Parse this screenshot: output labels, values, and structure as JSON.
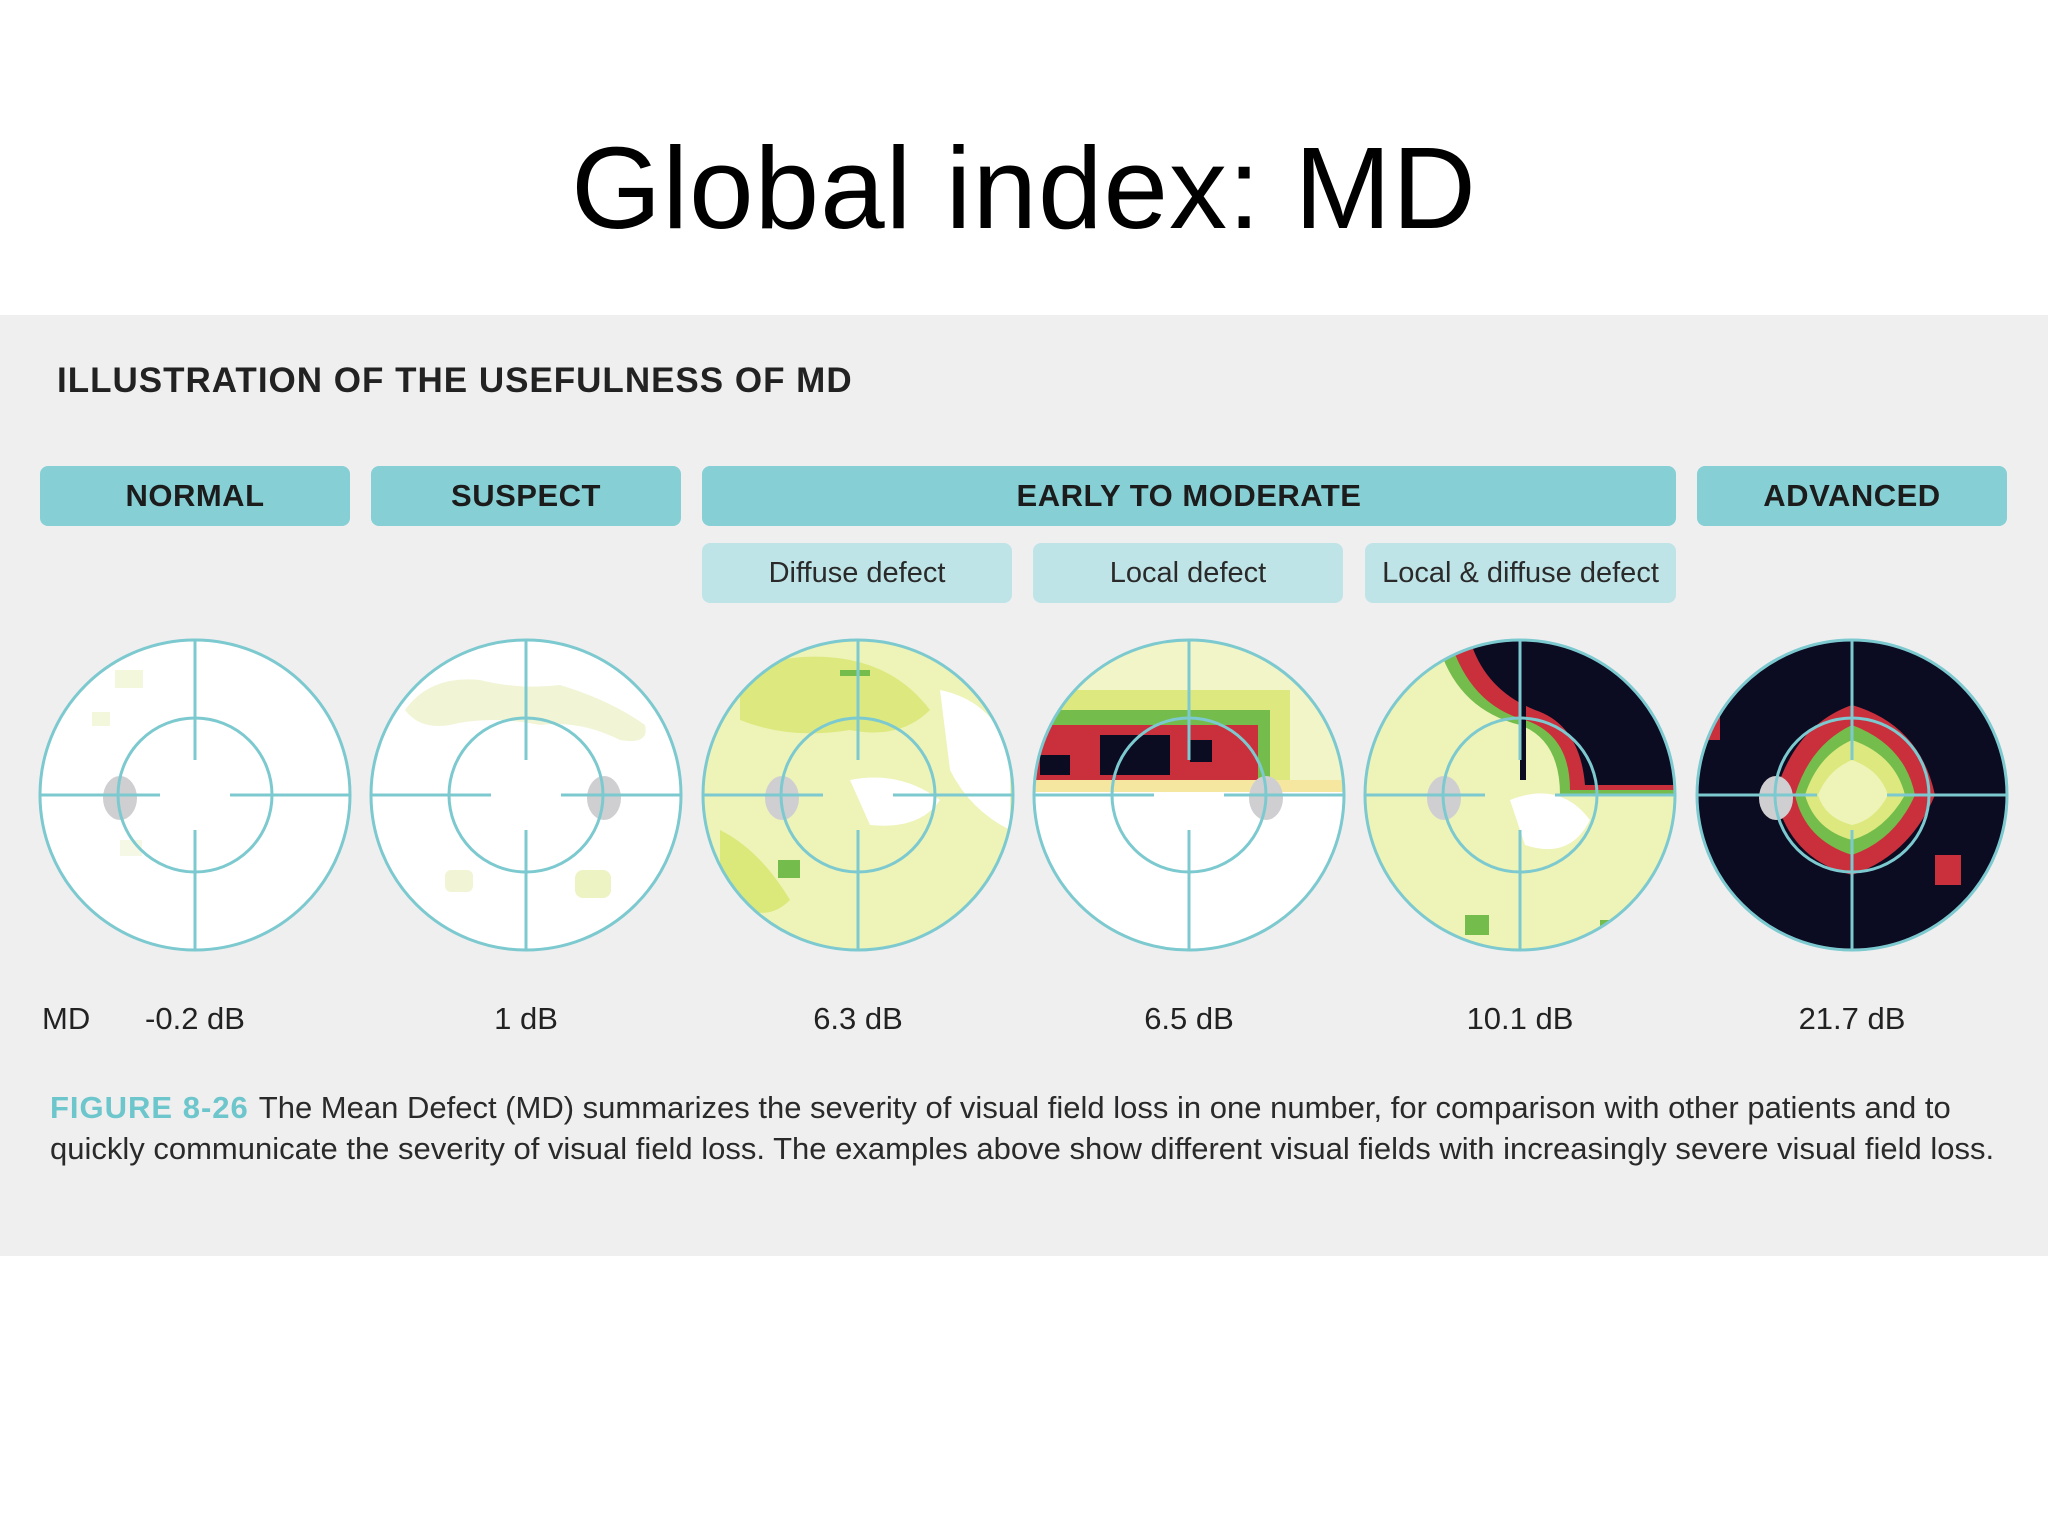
{
  "slide": {
    "title": "Global index: MD"
  },
  "figure": {
    "heading": "ILLUSTRATION OF THE USEFULNESS OF MD",
    "categories": [
      {
        "label": "NORMAL"
      },
      {
        "label": "SUSPECT"
      },
      {
        "label": "EARLY TO MODERATE"
      },
      {
        "label": "ADVANCED"
      }
    ],
    "subcategories": [
      {
        "label": "Diffuse defect"
      },
      {
        "label": "Local defect"
      },
      {
        "label": "Local & diffuse defect"
      }
    ],
    "md_row_label": "MD",
    "fields": [
      {
        "md": "-0.2 dB",
        "defect": "none"
      },
      {
        "md": "1 dB",
        "defect": "minimal"
      },
      {
        "md": "6.3 dB",
        "defect": "diffuse"
      },
      {
        "md": "6.5 dB",
        "defect": "local superior"
      },
      {
        "md": "10.1 dB",
        "defect": "local and diffuse"
      },
      {
        "md": "21.7 dB",
        "defect": "advanced"
      }
    ],
    "caption": {
      "label": "FIGURE 8-26",
      "text": "The Mean Defect (MD) summarizes the severity of visual field loss in one number, for comparison with other patients and to quickly communicate the severity of visual field loss. The examples above show different visual fields with increasingly severe visual field loss."
    },
    "colors": {
      "accent": "#86d0d5",
      "accent_light": "#bfe4e7",
      "ring": "#7cc9cf",
      "normal": "#ffffff",
      "mild": "#eef3b8",
      "moderate": "#dbe87a",
      "green": "#74bd4c",
      "red": "#c9303c",
      "dark": "#0b0c22",
      "blind_spot": "#cfcfd2"
    }
  }
}
